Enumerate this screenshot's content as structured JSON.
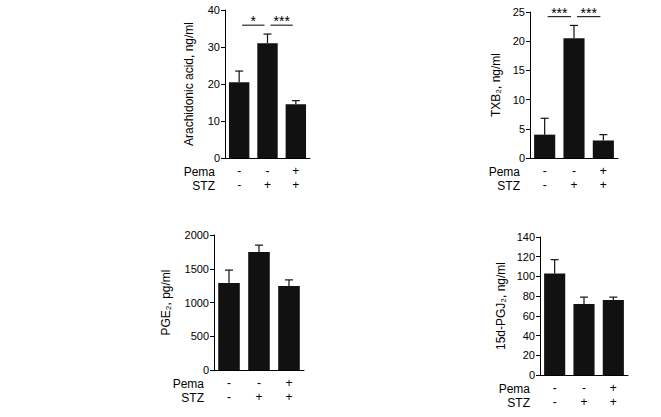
{
  "chart_data": [
    {
      "type": "bar",
      "y_label": "Arachidonic acid, ng/ml",
      "condition_rows": [
        {
          "name": "Pema",
          "values": [
            "-",
            "-",
            "+"
          ]
        },
        {
          "name": "STZ",
          "values": [
            "-",
            "+",
            "+"
          ]
        }
      ],
      "values": [
        20.5,
        31,
        14.5
      ],
      "errors": [
        3,
        2.5,
        1
      ],
      "color": "#111111",
      "ylim": [
        0,
        40
      ],
      "yticks": [
        0,
        10,
        20,
        30,
        40
      ],
      "significance": [
        {
          "from": 0,
          "to": 1,
          "label": "*"
        },
        {
          "from": 1,
          "to": 2,
          "label": "***"
        }
      ]
    },
    {
      "type": "bar",
      "y_label": "TXB₂, ng/ml",
      "condition_rows": [
        {
          "name": "Pema",
          "values": [
            "-",
            "-",
            "+"
          ]
        },
        {
          "name": "STZ",
          "values": [
            "-",
            "+",
            "+"
          ]
        }
      ],
      "values": [
        4,
        20.5,
        3
      ],
      "errors": [
        2.8,
        2.2,
        1
      ],
      "color": "#111111",
      "ylim": [
        0,
        25
      ],
      "yticks": [
        0,
        5,
        10,
        15,
        20,
        25
      ],
      "significance": [
        {
          "from": 0,
          "to": 1,
          "label": "***"
        },
        {
          "from": 1,
          "to": 2,
          "label": "***"
        }
      ]
    },
    {
      "type": "bar",
      "y_label": "PGE₂, pg/ml",
      "condition_rows": [
        {
          "name": "Pema",
          "values": [
            "-",
            "-",
            "+"
          ]
        },
        {
          "name": "STZ",
          "values": [
            "-",
            "+",
            "+"
          ]
        }
      ],
      "values": [
        1290,
        1750,
        1245
      ],
      "errors": [
        190,
        100,
        90
      ],
      "color": "#111111",
      "ylim": [
        0,
        2000
      ],
      "yticks": [
        0,
        500,
        1000,
        1500,
        2000
      ],
      "significance": []
    },
    {
      "type": "bar",
      "y_label": "15d-PGJ₂, ng/ml",
      "condition_rows": [
        {
          "name": "Pema",
          "values": [
            "-",
            "-",
            "+"
          ]
        },
        {
          "name": "STZ",
          "values": [
            "-",
            "+",
            "+"
          ]
        }
      ],
      "values": [
        103,
        72,
        76
      ],
      "errors": [
        14,
        7,
        3
      ],
      "color": "#111111",
      "ylim": [
        0,
        140
      ],
      "yticks": [
        0,
        20,
        40,
        60,
        80,
        100,
        120,
        140
      ],
      "significance": []
    }
  ]
}
